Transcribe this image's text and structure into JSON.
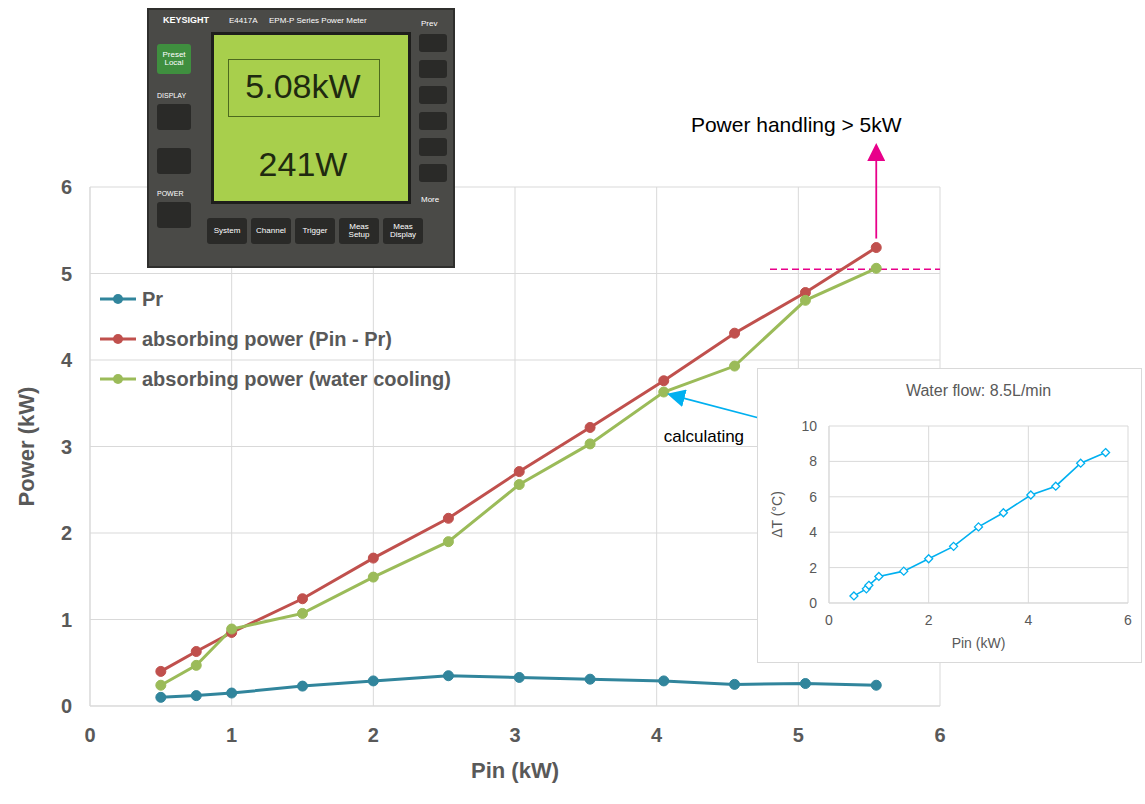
{
  "chart_data": [
    {
      "type": "line",
      "x_label": "Pin (kW)",
      "y_label": "Power (kW)",
      "x": [
        0.5,
        0.75,
        1.0,
        1.5,
        2.0,
        2.53,
        3.03,
        3.53,
        4.05,
        4.55,
        5.05,
        5.55
      ],
      "xlim": [
        0,
        6
      ],
      "xticks": [
        0,
        1,
        2,
        3,
        4,
        5,
        6
      ],
      "ylim": [
        0,
        6
      ],
      "yticks": [
        0,
        1,
        2,
        3,
        4,
        5,
        6
      ],
      "grid": true,
      "legend": "upper left",
      "series": [
        {
          "name": "Pr",
          "color": "#31859c",
          "marker": "circle",
          "line_style": "solid",
          "values": [
            0.1,
            0.12,
            0.15,
            0.23,
            0.29,
            0.35,
            0.33,
            0.31,
            0.29,
            0.25,
            0.26,
            0.24
          ]
        },
        {
          "name": "absorbing power (Pin - Pr)",
          "color": "#c0504d",
          "marker": "circle",
          "line_style": "solid",
          "values": [
            0.4,
            0.63,
            0.85,
            1.24,
            1.71,
            2.17,
            2.71,
            3.22,
            3.76,
            4.31,
            4.78,
            5.3
          ]
        },
        {
          "name": "absorbing power (water cooling)",
          "color": "#9bbb59",
          "marker": "circle",
          "line_style": "solid",
          "values": [
            0.24,
            0.47,
            0.89,
            1.07,
            1.49,
            1.9,
            2.56,
            3.03,
            3.63,
            3.93,
            4.69,
            5.06
          ]
        }
      ],
      "reference_line": {
        "y": 5.05,
        "x": [
          4.8,
          6
        ],
        "color": "#e8008a",
        "line_style": "dashed"
      },
      "annotations": [
        {
          "text": "Power handling > 5kW",
          "x": 5.55,
          "y": 5.3,
          "color": "#e8008a"
        },
        {
          "text": "calculating",
          "x": 4.05,
          "y": 3.63,
          "color": "#00b0f0"
        }
      ]
    },
    {
      "type": "line",
      "title": "Water flow: 8.5L/min",
      "x_label": "Pin (kW)",
      "y_label": "ΔT (°C)",
      "x": [
        0.5,
        0.75,
        0.8,
        1.0,
        1.5,
        2.0,
        2.5,
        3.0,
        3.5,
        4.05,
        4.55,
        5.05,
        5.55
      ],
      "xlim": [
        0,
        6
      ],
      "xticks": [
        0,
        2,
        4,
        6
      ],
      "ylim": [
        0,
        10
      ],
      "yticks": [
        0,
        2,
        4,
        6,
        8,
        10
      ],
      "grid": true,
      "series": [
        {
          "color": "#00b0f0",
          "marker": "diamond",
          "line_style": "solid",
          "values": [
            0.4,
            0.8,
            1.0,
            1.5,
            1.8,
            2.5,
            3.2,
            4.3,
            5.1,
            6.1,
            6.6,
            7.9,
            8.5
          ]
        }
      ]
    }
  ],
  "photo": {
    "brand": "KEYSIGHT",
    "model": "E4417A",
    "name": "EPM-P Series Power Meter",
    "readings": [
      "5.08kW",
      "241W"
    ],
    "left_keys": [
      "Preset Local",
      "DISPLAY",
      "POWER"
    ],
    "side_keys": [
      "Prev",
      "More"
    ],
    "keys": [
      "System",
      "Channel",
      "Trigger",
      "Meas Setup",
      "Meas Display"
    ]
  }
}
